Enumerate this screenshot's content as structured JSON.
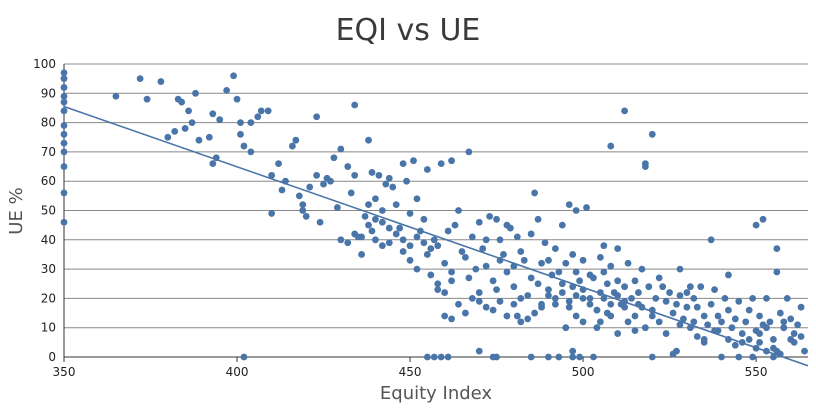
{
  "chart_data": {
    "type": "scatter",
    "title": "EQI vs UE",
    "xlabel": "Equity Index",
    "ylabel": "UE %",
    "xlim": [
      350,
      565
    ],
    "ylim": [
      0,
      100
    ],
    "xticks": [
      350,
      400,
      450,
      500,
      550
    ],
    "yticks": [
      0,
      10,
      20,
      30,
      40,
      50,
      60,
      70,
      80,
      90,
      100
    ],
    "grid": "horizontal",
    "colors": {
      "points": "#4a75a9",
      "trendline": "#4a75a9"
    },
    "trendline": {
      "x": [
        350,
        565
      ],
      "y": [
        85.5,
        -3
      ]
    },
    "points": [
      [
        350,
        97
      ],
      [
        350,
        95
      ],
      [
        350,
        92
      ],
      [
        350,
        89
      ],
      [
        350,
        87
      ],
      [
        350,
        84
      ],
      [
        350,
        79
      ],
      [
        350,
        76
      ],
      [
        350,
        73
      ],
      [
        350,
        70
      ],
      [
        350,
        65
      ],
      [
        350,
        56
      ],
      [
        350,
        46
      ],
      [
        365,
        89
      ],
      [
        372,
        95
      ],
      [
        374,
        88
      ],
      [
        378,
        94
      ],
      [
        380,
        75
      ],
      [
        382,
        77
      ],
      [
        383,
        88
      ],
      [
        384,
        87
      ],
      [
        385,
        78
      ],
      [
        386,
        84
      ],
      [
        387,
        80
      ],
      [
        388,
        90
      ],
      [
        389,
        74
      ],
      [
        392,
        75
      ],
      [
        393,
        83
      ],
      [
        393,
        66
      ],
      [
        394,
        68
      ],
      [
        395,
        81
      ],
      [
        397,
        91
      ],
      [
        399,
        96
      ],
      [
        400,
        88
      ],
      [
        401,
        80
      ],
      [
        401,
        76
      ],
      [
        402,
        72
      ],
      [
        404,
        70
      ],
      [
        404,
        80
      ],
      [
        402,
        0
      ],
      [
        406,
        82
      ],
      [
        407,
        84
      ],
      [
        409,
        84
      ],
      [
        410,
        62
      ],
      [
        410,
        49
      ],
      [
        412,
        66
      ],
      [
        413,
        57
      ],
      [
        414,
        60
      ],
      [
        416,
        72
      ],
      [
        417,
        74
      ],
      [
        418,
        55
      ],
      [
        419,
        52
      ],
      [
        419,
        50
      ],
      [
        420,
        48
      ],
      [
        421,
        58
      ],
      [
        423,
        82
      ],
      [
        423,
        62
      ],
      [
        424,
        46
      ],
      [
        425,
        59
      ],
      [
        426,
        61
      ],
      [
        427,
        60
      ],
      [
        428,
        68
      ],
      [
        429,
        51
      ],
      [
        430,
        71
      ],
      [
        432,
        65
      ],
      [
        433,
        56
      ],
      [
        434,
        62
      ],
      [
        434,
        86
      ],
      [
        435,
        41
      ],
      [
        436,
        35
      ],
      [
        437,
        48
      ],
      [
        438,
        52
      ],
      [
        438,
        74
      ],
      [
        439,
        63
      ],
      [
        439,
        43
      ],
      [
        440,
        54
      ],
      [
        440,
        40
      ],
      [
        441,
        62
      ],
      [
        442,
        50
      ],
      [
        442,
        38
      ],
      [
        443,
        59
      ],
      [
        444,
        61
      ],
      [
        444,
        39
      ],
      [
        445,
        58
      ],
      [
        446,
        52
      ],
      [
        447,
        44
      ],
      [
        448,
        66
      ],
      [
        448,
        36
      ],
      [
        449,
        60
      ],
      [
        450,
        49
      ],
      [
        450,
        33
      ],
      [
        451,
        67
      ],
      [
        452,
        30
      ],
      [
        452,
        54
      ],
      [
        453,
        43
      ],
      [
        454,
        47
      ],
      [
        455,
        35
      ],
      [
        455,
        64
      ],
      [
        456,
        28
      ],
      [
        457,
        40
      ],
      [
        458,
        38
      ],
      [
        458,
        25
      ],
      [
        459,
        66
      ],
      [
        460,
        32
      ],
      [
        461,
        43
      ],
      [
        462,
        29
      ],
      [
        462,
        67
      ],
      [
        463,
        45
      ],
      [
        464,
        50
      ],
      [
        465,
        36
      ],
      [
        466,
        34
      ],
      [
        467,
        70
      ],
      [
        467,
        27
      ],
      [
        468,
        41
      ],
      [
        469,
        30
      ],
      [
        470,
        46
      ],
      [
        470,
        22
      ],
      [
        471,
        37
      ],
      [
        472,
        40
      ],
      [
        472,
        31
      ],
      [
        473,
        48
      ],
      [
        474,
        26
      ],
      [
        475,
        47
      ],
      [
        475,
        23
      ],
      [
        476,
        40
      ],
      [
        476,
        33
      ],
      [
        477,
        35
      ],
      [
        478,
        45
      ],
      [
        478,
        29
      ],
      [
        479,
        44
      ],
      [
        480,
        24
      ],
      [
        480,
        31
      ],
      [
        481,
        41
      ],
      [
        481,
        14
      ],
      [
        482,
        36
      ],
      [
        482,
        12
      ],
      [
        483,
        33
      ],
      [
        484,
        21
      ],
      [
        485,
        42
      ],
      [
        485,
        27
      ],
      [
        486,
        56
      ],
      [
        487,
        25
      ],
      [
        487,
        47
      ],
      [
        488,
        32
      ],
      [
        488,
        18
      ],
      [
        489,
        39
      ],
      [
        490,
        33
      ],
      [
        490,
        23
      ],
      [
        491,
        28
      ],
      [
        492,
        37
      ],
      [
        492,
        20
      ],
      [
        493,
        29
      ],
      [
        494,
        25
      ],
      [
        494,
        45
      ],
      [
        495,
        32
      ],
      [
        496,
        17
      ],
      [
        496,
        52
      ],
      [
        497,
        24
      ],
      [
        497,
        35
      ],
      [
        498,
        29
      ],
      [
        498,
        50
      ],
      [
        499,
        26
      ],
      [
        500,
        23
      ],
      [
        500,
        33
      ],
      [
        501,
        51
      ],
      [
        502,
        20
      ],
      [
        502,
        28
      ],
      [
        503,
        27
      ],
      [
        504,
        16
      ],
      [
        505,
        34
      ],
      [
        505,
        22
      ],
      [
        506,
        38
      ],
      [
        506,
        29
      ],
      [
        507,
        25
      ],
      [
        507,
        15
      ],
      [
        508,
        31
      ],
      [
        508,
        72
      ],
      [
        509,
        22
      ],
      [
        510,
        26
      ],
      [
        510,
        37
      ],
      [
        511,
        18
      ],
      [
        512,
        84
      ],
      [
        512,
        24
      ],
      [
        513,
        12
      ],
      [
        513,
        32
      ],
      [
        514,
        20
      ],
      [
        515,
        26
      ],
      [
        515,
        14
      ],
      [
        516,
        22
      ],
      [
        517,
        30
      ],
      [
        517,
        17
      ],
      [
        518,
        65
      ],
      [
        518,
        66
      ],
      [
        519,
        24
      ],
      [
        520,
        76
      ],
      [
        520,
        14
      ],
      [
        521,
        20
      ],
      [
        522,
        27
      ],
      [
        522,
        12
      ],
      [
        523,
        24
      ],
      [
        524,
        19
      ],
      [
        525,
        22
      ],
      [
        526,
        15
      ],
      [
        527,
        18
      ],
      [
        528,
        21
      ],
      [
        528,
        30
      ],
      [
        529,
        13
      ],
      [
        530,
        17
      ],
      [
        531,
        10
      ],
      [
        531,
        24
      ],
      [
        532,
        20
      ],
      [
        533,
        17
      ],
      [
        534,
        24
      ],
      [
        535,
        14
      ],
      [
        536,
        11
      ],
      [
        537,
        18
      ],
      [
        537,
        40
      ],
      [
        538,
        23
      ],
      [
        539,
        14
      ],
      [
        539,
        9
      ],
      [
        540,
        12
      ],
      [
        541,
        20
      ],
      [
        542,
        16
      ],
      [
        542,
        28
      ],
      [
        543,
        10
      ],
      [
        544,
        13
      ],
      [
        545,
        19
      ],
      [
        546,
        8
      ],
      [
        547,
        12
      ],
      [
        548,
        16
      ],
      [
        549,
        20
      ],
      [
        550,
        45
      ],
      [
        550,
        9
      ],
      [
        551,
        14
      ],
      [
        552,
        11
      ],
      [
        552,
        47
      ],
      [
        553,
        20
      ],
      [
        554,
        12
      ],
      [
        555,
        6
      ],
      [
        556,
        29
      ],
      [
        556,
        37
      ],
      [
        557,
        15
      ],
      [
        558,
        10
      ],
      [
        559,
        20
      ],
      [
        560,
        6
      ],
      [
        560,
        13
      ],
      [
        561,
        8
      ],
      [
        562,
        11
      ],
      [
        563,
        17
      ],
      [
        563,
        7
      ],
      [
        530,
        22
      ],
      [
        533,
        7
      ],
      [
        535,
        6
      ],
      [
        540,
        0
      ],
      [
        549,
        0
      ],
      [
        555,
        3
      ],
      [
        558,
        12
      ],
      [
        561,
        5
      ],
      [
        564,
        2
      ],
      [
        545,
        0
      ],
      [
        520,
        0
      ],
      [
        503,
        0
      ],
      [
        490,
        0
      ],
      [
        475,
        0
      ],
      [
        470,
        2
      ],
      [
        495,
        10
      ],
      [
        498,
        14
      ],
      [
        505,
        12
      ],
      [
        510,
        8
      ],
      [
        515,
        9
      ],
      [
        518,
        10
      ],
      [
        524,
        8
      ],
      [
        528,
        11
      ],
      [
        532,
        12
      ],
      [
        538,
        9
      ],
      [
        542,
        6
      ],
      [
        546,
        5
      ],
      [
        550,
        3
      ],
      [
        553,
        2
      ],
      [
        557,
        1
      ],
      [
        555,
        0
      ],
      [
        553,
        10
      ],
      [
        551,
        8
      ],
      [
        548,
        6
      ],
      [
        544,
        4
      ],
      [
        526,
        1
      ],
      [
        527,
        2
      ],
      [
        535,
        5
      ],
      [
        520,
        16
      ],
      [
        516,
        18
      ],
      [
        512,
        17
      ],
      [
        508,
        14
      ],
      [
        504,
        10
      ],
      [
        500,
        12
      ],
      [
        458,
        23
      ],
      [
        460,
        22
      ],
      [
        462,
        26
      ],
      [
        464,
        18
      ],
      [
        466,
        15
      ],
      [
        468,
        20
      ],
      [
        470,
        19
      ],
      [
        472,
        17
      ],
      [
        474,
        16
      ],
      [
        476,
        19
      ],
      [
        478,
        14
      ],
      [
        480,
        18
      ],
      [
        482,
        20
      ],
      [
        484,
        13
      ],
      [
        486,
        15
      ],
      [
        488,
        17
      ],
      [
        490,
        21
      ],
      [
        492,
        18
      ],
      [
        494,
        22
      ],
      [
        496,
        19
      ],
      [
        498,
        21
      ],
      [
        500,
        20
      ],
      [
        502,
        18
      ],
      [
        504,
        16
      ],
      [
        506,
        20
      ],
      [
        508,
        18
      ],
      [
        510,
        21
      ],
      [
        512,
        19
      ],
      [
        430,
        40
      ],
      [
        432,
        39
      ],
      [
        434,
        42
      ],
      [
        436,
        41
      ],
      [
        438,
        45
      ],
      [
        440,
        47
      ],
      [
        442,
        46
      ],
      [
        444,
        44
      ],
      [
        446,
        42
      ],
      [
        448,
        40
      ],
      [
        450,
        38
      ],
      [
        452,
        41
      ],
      [
        454,
        39
      ],
      [
        456,
        37
      ],
      [
        460,
        14
      ],
      [
        462,
        13
      ],
      [
        455,
        0
      ],
      [
        457,
        0
      ],
      [
        459,
        0
      ],
      [
        461,
        0
      ],
      [
        474,
        0
      ],
      [
        485,
        0
      ],
      [
        493,
        0
      ],
      [
        497,
        0
      ],
      [
        499,
        0
      ],
      [
        497,
        2
      ],
      [
        551,
        5
      ],
      [
        556,
        2
      ]
    ]
  }
}
